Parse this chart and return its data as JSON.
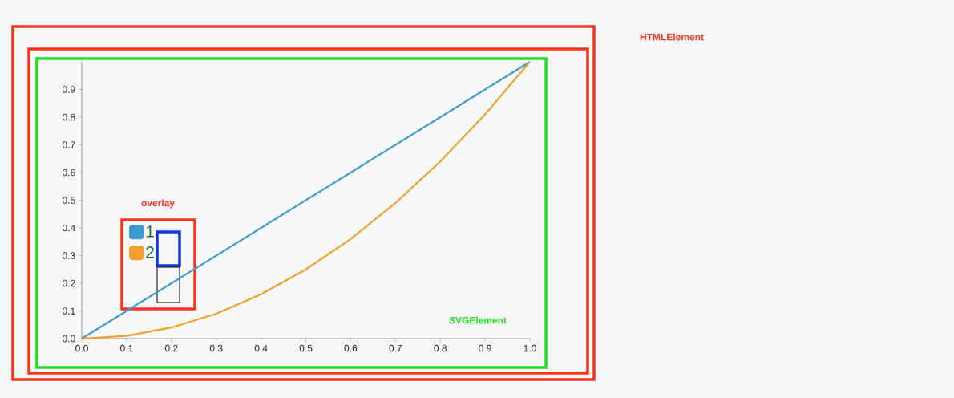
{
  "chart_data": {
    "type": "line",
    "annotations": [
      "HTMLElement",
      "overlay",
      "SVGElement"
    ],
    "xlim": [
      0,
      1
    ],
    "ylim": [
      0,
      1
    ],
    "xticks": [
      {
        "value": 0,
        "label": "0.0"
      },
      0.1,
      0.2,
      0.3,
      0.4,
      0.5,
      0.6,
      0.7,
      0.8,
      0.9,
      {
        "value": 1,
        "label": "1.0"
      }
    ],
    "yticks": [
      {
        "value": 0,
        "label": "0.0"
      },
      0.1,
      0.2,
      0.3,
      0.4,
      0.5,
      0.6,
      0.7,
      0.8,
      0.9
    ],
    "legend": "left",
    "grid": false,
    "marker": "none",
    "line_style": "solid",
    "series": [
      {
        "name": "1",
        "color": "#3d9ad1",
        "x": [
          0,
          1
        ],
        "values": [
          0,
          1
        ]
      },
      {
        "name": "2",
        "color": "#f0a02b",
        "x": [
          0,
          0.1,
          0.2,
          0.3,
          0.4,
          0.5,
          0.6,
          0.7,
          0.8,
          0.9,
          1
        ],
        "values": [
          0,
          0.01,
          0.04,
          0.09,
          0.16,
          0.25,
          0.36,
          0.49,
          0.64,
          0.81,
          1
        ]
      }
    ]
  }
}
